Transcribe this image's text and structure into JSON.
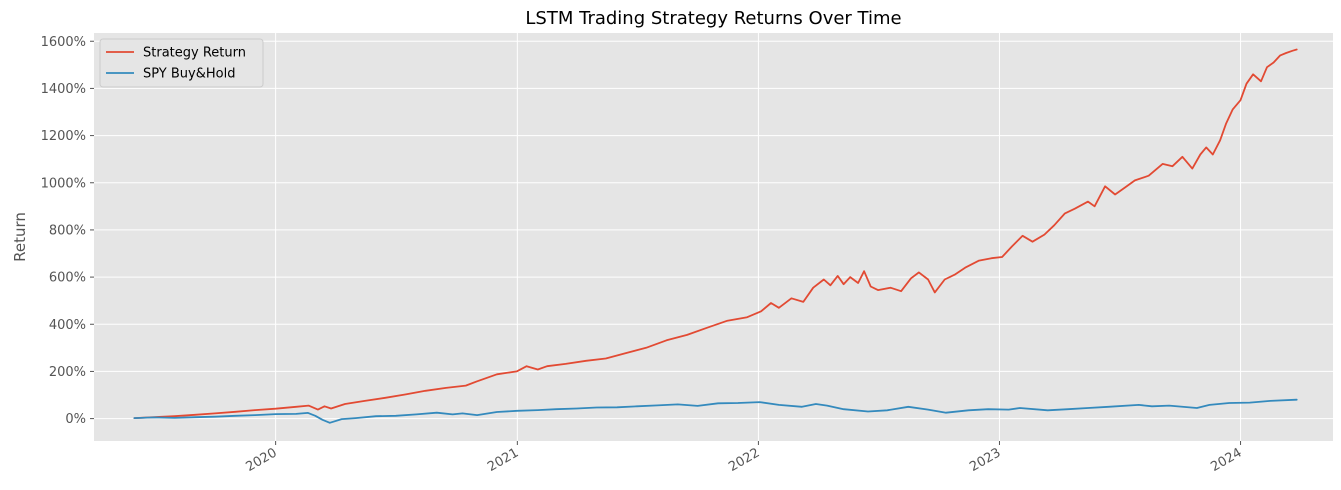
{
  "chart_data": {
    "type": "line",
    "title": "LSTM Trading Strategy Returns Over Time",
    "xlabel": "",
    "ylabel": "Return",
    "xlim": [
      "2019-04-01",
      "2024-05-20"
    ],
    "ylim": [
      -0.95,
      16.35
    ],
    "y_ticks": [
      0,
      2,
      4,
      6,
      8,
      10,
      12,
      14,
      16
    ],
    "y_tick_labels": [
      "0%",
      "200%",
      "400%",
      "600%",
      "800%",
      "1000%",
      "1200%",
      "1400%",
      "1600%"
    ],
    "x_ticks": [
      "2020-01-01",
      "2021-01-01",
      "2022-01-01",
      "2023-01-01",
      "2024-01-01"
    ],
    "x_tick_labels": [
      "2020",
      "2021",
      "2022",
      "2023",
      "2024"
    ],
    "grid": true,
    "legend_position": "top-left",
    "colors": {
      "background": "#e5e5e5",
      "grid": "#ffffff"
    },
    "series": [
      {
        "name": "Strategy Return",
        "color": "#e24a33",
        "points": [
          [
            "2019-06-01",
            0.02
          ],
          [
            "2019-07-01",
            0.06
          ],
          [
            "2019-08-01",
            0.1
          ],
          [
            "2019-09-01",
            0.16
          ],
          [
            "2019-10-01",
            0.22
          ],
          [
            "2019-11-01",
            0.29
          ],
          [
            "2019-12-01",
            0.36
          ],
          [
            "2020-01-01",
            0.42
          ],
          [
            "2020-02-01",
            0.5
          ],
          [
            "2020-02-20",
            0.55
          ],
          [
            "2020-03-05",
            0.38
          ],
          [
            "2020-03-15",
            0.52
          ],
          [
            "2020-03-25",
            0.43
          ],
          [
            "2020-04-15",
            0.62
          ],
          [
            "2020-05-15",
            0.75
          ],
          [
            "2020-06-15",
            0.88
          ],
          [
            "2020-07-15",
            1.02
          ],
          [
            "2020-08-15",
            1.18
          ],
          [
            "2020-09-15",
            1.3
          ],
          [
            "2020-10-15",
            1.4
          ],
          [
            "2020-11-01",
            1.58
          ],
          [
            "2020-12-01",
            1.88
          ],
          [
            "2020-12-31",
            2.0
          ],
          [
            "2021-01-15",
            2.22
          ],
          [
            "2021-02-01",
            2.08
          ],
          [
            "2021-02-15",
            2.22
          ],
          [
            "2021-03-15",
            2.32
          ],
          [
            "2021-04-15",
            2.45
          ],
          [
            "2021-05-15",
            2.55
          ],
          [
            "2021-06-15",
            2.78
          ],
          [
            "2021-07-15",
            3.0
          ],
          [
            "2021-08-15",
            3.32
          ],
          [
            "2021-09-15",
            3.55
          ],
          [
            "2021-10-15",
            3.85
          ],
          [
            "2021-11-15",
            4.15
          ],
          [
            "2021-12-15",
            4.3
          ],
          [
            "2022-01-05",
            4.55
          ],
          [
            "2022-01-20",
            4.9
          ],
          [
            "2022-02-01",
            4.7
          ],
          [
            "2022-02-20",
            5.1
          ],
          [
            "2022-03-10",
            4.95
          ],
          [
            "2022-03-25",
            5.55
          ],
          [
            "2022-04-10",
            5.9
          ],
          [
            "2022-04-20",
            5.65
          ],
          [
            "2022-05-01",
            6.05
          ],
          [
            "2022-05-10",
            5.7
          ],
          [
            "2022-05-20",
            6.0
          ],
          [
            "2022-06-01",
            5.75
          ],
          [
            "2022-06-10",
            6.25
          ],
          [
            "2022-06-20",
            5.6
          ],
          [
            "2022-07-01",
            5.45
          ],
          [
            "2022-07-20",
            5.55
          ],
          [
            "2022-08-05",
            5.4
          ],
          [
            "2022-08-20",
            5.95
          ],
          [
            "2022-09-01",
            6.2
          ],
          [
            "2022-09-15",
            5.9
          ],
          [
            "2022-09-25",
            5.35
          ],
          [
            "2022-10-10",
            5.9
          ],
          [
            "2022-10-25",
            6.1
          ],
          [
            "2022-11-10",
            6.4
          ],
          [
            "2022-12-01",
            6.7
          ],
          [
            "2022-12-20",
            6.8
          ],
          [
            "2023-01-05",
            6.85
          ],
          [
            "2023-01-20",
            7.3
          ],
          [
            "2023-02-05",
            7.75
          ],
          [
            "2023-02-20",
            7.5
          ],
          [
            "2023-03-10",
            7.8
          ],
          [
            "2023-03-25",
            8.2
          ],
          [
            "2023-04-10",
            8.7
          ],
          [
            "2023-04-25",
            8.9
          ],
          [
            "2023-05-15",
            9.2
          ],
          [
            "2023-05-25",
            9.0
          ],
          [
            "2023-06-10",
            9.85
          ],
          [
            "2023-06-25",
            9.5
          ],
          [
            "2023-07-10",
            9.8
          ],
          [
            "2023-07-25",
            10.1
          ],
          [
            "2023-08-15",
            10.3
          ],
          [
            "2023-09-05",
            10.8
          ],
          [
            "2023-09-20",
            10.7
          ],
          [
            "2023-10-05",
            11.1
          ],
          [
            "2023-10-20",
            10.6
          ],
          [
            "2023-11-01",
            11.2
          ],
          [
            "2023-11-10",
            11.5
          ],
          [
            "2023-11-20",
            11.2
          ],
          [
            "2023-12-01",
            11.8
          ],
          [
            "2023-12-10",
            12.5
          ],
          [
            "2023-12-20",
            13.1
          ],
          [
            "2024-01-01",
            13.5
          ],
          [
            "2024-01-10",
            14.2
          ],
          [
            "2024-01-20",
            14.6
          ],
          [
            "2024-02-01",
            14.3
          ],
          [
            "2024-02-10",
            14.9
          ],
          [
            "2024-02-20",
            15.1
          ],
          [
            "2024-03-01",
            15.4
          ],
          [
            "2024-03-10",
            15.5
          ],
          [
            "2024-03-20",
            15.6
          ],
          [
            "2024-03-26",
            15.65
          ]
        ]
      },
      {
        "name": "SPY Buy&Hold",
        "color": "#348abd",
        "points": [
          [
            "2019-06-01",
            0.02
          ],
          [
            "2019-07-01",
            0.05
          ],
          [
            "2019-08-01",
            0.03
          ],
          [
            "2019-09-01",
            0.06
          ],
          [
            "2019-10-01",
            0.08
          ],
          [
            "2019-11-01",
            0.12
          ],
          [
            "2019-12-01",
            0.15
          ],
          [
            "2020-01-01",
            0.19
          ],
          [
            "2020-02-01",
            0.2
          ],
          [
            "2020-02-19",
            0.24
          ],
          [
            "2020-03-01",
            0.12
          ],
          [
            "2020-03-12",
            -0.05
          ],
          [
            "2020-03-23",
            -0.18
          ],
          [
            "2020-04-10",
            -0.02
          ],
          [
            "2020-05-01",
            0.02
          ],
          [
            "2020-06-01",
            0.1
          ],
          [
            "2020-07-01",
            0.12
          ],
          [
            "2020-08-01",
            0.18
          ],
          [
            "2020-09-01",
            0.25
          ],
          [
            "2020-09-25",
            0.18
          ],
          [
            "2020-10-10",
            0.22
          ],
          [
            "2020-11-01",
            0.15
          ],
          [
            "2020-12-01",
            0.28
          ],
          [
            "2021-01-01",
            0.33
          ],
          [
            "2021-02-01",
            0.36
          ],
          [
            "2021-03-01",
            0.4
          ],
          [
            "2021-04-01",
            0.43
          ],
          [
            "2021-05-01",
            0.47
          ],
          [
            "2021-06-01",
            0.48
          ],
          [
            "2021-07-01",
            0.52
          ],
          [
            "2021-08-01",
            0.56
          ],
          [
            "2021-09-01",
            0.6
          ],
          [
            "2021-10-01",
            0.54
          ],
          [
            "2021-11-01",
            0.65
          ],
          [
            "2021-12-01",
            0.66
          ],
          [
            "2022-01-03",
            0.7
          ],
          [
            "2022-02-01",
            0.58
          ],
          [
            "2022-03-08",
            0.5
          ],
          [
            "2022-03-29",
            0.62
          ],
          [
            "2022-04-15",
            0.55
          ],
          [
            "2022-05-10",
            0.4
          ],
          [
            "2022-06-16",
            0.3
          ],
          [
            "2022-07-15",
            0.35
          ],
          [
            "2022-08-16",
            0.5
          ],
          [
            "2022-09-15",
            0.38
          ],
          [
            "2022-10-12",
            0.25
          ],
          [
            "2022-11-15",
            0.35
          ],
          [
            "2022-12-15",
            0.4
          ],
          [
            "2023-01-15",
            0.38
          ],
          [
            "2023-02-01",
            0.45
          ],
          [
            "2023-03-15",
            0.35
          ],
          [
            "2023-04-15",
            0.4
          ],
          [
            "2023-05-15",
            0.45
          ],
          [
            "2023-06-15",
            0.5
          ],
          [
            "2023-07-31",
            0.58
          ],
          [
            "2023-08-20",
            0.52
          ],
          [
            "2023-09-15",
            0.55
          ],
          [
            "2023-10-27",
            0.45
          ],
          [
            "2023-11-15",
            0.58
          ],
          [
            "2023-12-15",
            0.66
          ],
          [
            "2024-01-15",
            0.68
          ],
          [
            "2024-02-15",
            0.75
          ],
          [
            "2024-03-26",
            0.8
          ]
        ]
      }
    ]
  }
}
